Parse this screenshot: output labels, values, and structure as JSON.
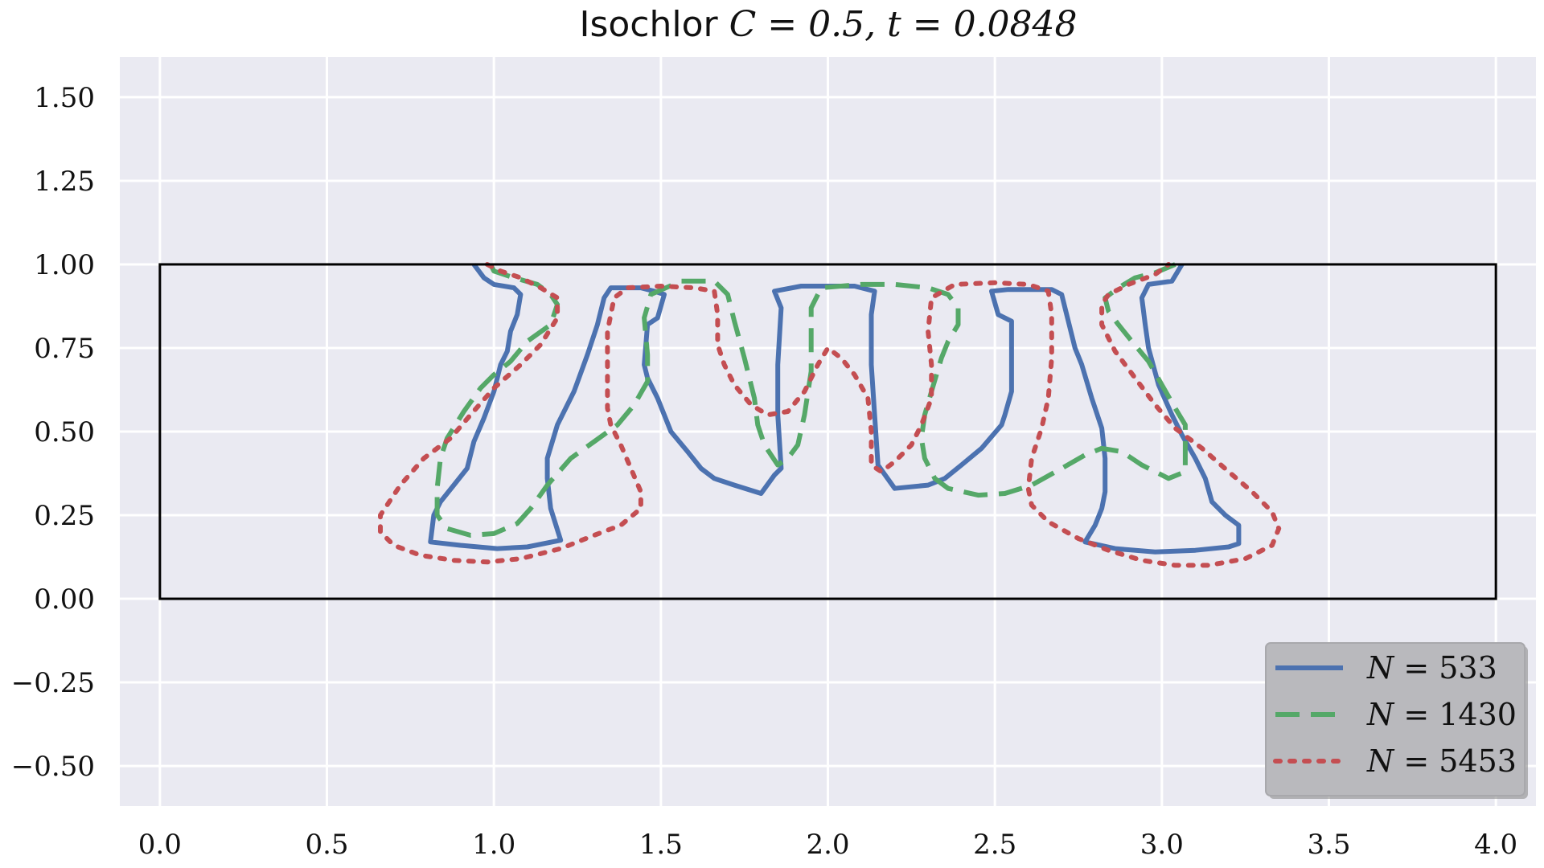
{
  "chart_data": {
    "type": "line",
    "title": "Isochlor C = 0.5, t = 0.0848",
    "title_parts": {
      "prefix": "Isochlor ",
      "c_label": "C = 0.5, ",
      "t_label": "t = 0.0848"
    },
    "xlabel": "",
    "ylabel": "",
    "xlim": [
      -0.12,
      4.12
    ],
    "ylim": [
      -0.62,
      1.62
    ],
    "x_ticks": [
      0.0,
      0.5,
      1.0,
      1.5,
      2.0,
      2.5,
      3.0,
      3.5,
      4.0
    ],
    "x_tick_labels": [
      "0.0",
      "0.5",
      "1.0",
      "1.5",
      "2.0",
      "2.5",
      "3.0",
      "3.5",
      "4.0"
    ],
    "y_ticks": [
      1.5,
      1.25,
      1.0,
      0.75,
      0.5,
      0.25,
      0.0,
      -0.25,
      -0.5
    ],
    "y_tick_labels": [
      "1.50",
      "1.25",
      "1.00",
      "0.75",
      "0.50",
      "0.25",
      "0.00",
      "−0.25",
      "−0.50"
    ],
    "grid": true,
    "background": "#eaeaf2",
    "legend_position": "bottom-right",
    "domain_box": {
      "x": [
        0,
        4
      ],
      "y": [
        0,
        1
      ],
      "color": "#000000"
    },
    "series": [
      {
        "name": "N = 533",
        "legend_var": "N",
        "legend_value": "= 533",
        "color": "#4c72b0",
        "style": "solid",
        "points": [
          [
            0.94,
            1.0
          ],
          [
            0.97,
            0.96
          ],
          [
            1.0,
            0.94
          ],
          [
            1.06,
            0.93
          ],
          [
            1.08,
            0.91
          ],
          [
            1.07,
            0.85
          ],
          [
            1.05,
            0.8
          ],
          [
            1.04,
            0.74
          ],
          [
            1.02,
            0.7
          ],
          [
            1.0,
            0.62
          ],
          [
            0.97,
            0.54
          ],
          [
            0.94,
            0.47
          ],
          [
            0.92,
            0.39
          ],
          [
            0.88,
            0.34
          ],
          [
            0.84,
            0.29
          ],
          [
            0.82,
            0.25
          ],
          [
            0.81,
            0.17
          ],
          [
            0.9,
            0.16
          ],
          [
            1.01,
            0.15
          ],
          [
            1.1,
            0.155
          ],
          [
            1.2,
            0.175
          ],
          [
            1.17,
            0.27
          ],
          [
            1.16,
            0.36
          ],
          [
            1.16,
            0.42
          ],
          [
            1.19,
            0.52
          ],
          [
            1.24,
            0.62
          ],
          [
            1.28,
            0.73
          ],
          [
            1.31,
            0.82
          ],
          [
            1.33,
            0.9
          ],
          [
            1.35,
            0.93
          ],
          [
            1.44,
            0.93
          ],
          [
            1.48,
            0.92
          ],
          [
            1.51,
            0.91
          ],
          [
            1.49,
            0.84
          ],
          [
            1.46,
            0.82
          ],
          [
            1.45,
            0.7
          ],
          [
            1.46,
            0.66
          ],
          [
            1.49,
            0.6
          ],
          [
            1.53,
            0.5
          ],
          [
            1.58,
            0.44
          ],
          [
            1.62,
            0.39
          ],
          [
            1.66,
            0.36
          ],
          [
            1.72,
            0.34
          ],
          [
            1.8,
            0.315
          ],
          [
            1.84,
            0.37
          ],
          [
            1.86,
            0.39
          ],
          [
            1.85,
            0.55
          ],
          [
            1.85,
            0.7
          ],
          [
            1.86,
            0.87
          ],
          [
            1.84,
            0.92
          ],
          [
            1.92,
            0.935
          ],
          [
            2.0,
            0.935
          ],
          [
            2.08,
            0.935
          ],
          [
            2.14,
            0.92
          ],
          [
            2.13,
            0.85
          ],
          [
            2.13,
            0.7
          ],
          [
            2.14,
            0.55
          ],
          [
            2.15,
            0.4
          ],
          [
            2.2,
            0.33
          ],
          [
            2.3,
            0.34
          ],
          [
            2.35,
            0.36
          ],
          [
            2.4,
            0.4
          ],
          [
            2.46,
            0.45
          ],
          [
            2.52,
            0.52
          ],
          [
            2.53,
            0.55
          ],
          [
            2.55,
            0.62
          ],
          [
            2.55,
            0.76
          ],
          [
            2.55,
            0.83
          ],
          [
            2.51,
            0.85
          ],
          [
            2.49,
            0.92
          ],
          [
            2.54,
            0.925
          ],
          [
            2.63,
            0.925
          ],
          [
            2.67,
            0.925
          ],
          [
            2.7,
            0.91
          ],
          [
            2.72,
            0.83
          ],
          [
            2.74,
            0.75
          ],
          [
            2.76,
            0.7
          ],
          [
            2.79,
            0.6
          ],
          [
            2.82,
            0.51
          ],
          [
            2.83,
            0.42
          ],
          [
            2.83,
            0.32
          ],
          [
            2.82,
            0.27
          ],
          [
            2.8,
            0.22
          ],
          [
            2.77,
            0.17
          ],
          [
            2.86,
            0.15
          ],
          [
            2.98,
            0.14
          ],
          [
            3.1,
            0.145
          ],
          [
            3.2,
            0.155
          ],
          [
            3.23,
            0.165
          ],
          [
            3.23,
            0.22
          ],
          [
            3.19,
            0.25
          ],
          [
            3.15,
            0.29
          ],
          [
            3.13,
            0.36
          ],
          [
            3.1,
            0.42
          ],
          [
            3.06,
            0.49
          ],
          [
            3.03,
            0.55
          ],
          [
            2.99,
            0.64
          ],
          [
            2.96,
            0.75
          ],
          [
            2.95,
            0.82
          ],
          [
            2.94,
            0.9
          ],
          [
            2.96,
            0.94
          ],
          [
            3.03,
            0.95
          ],
          [
            3.06,
            1.0
          ]
        ]
      },
      {
        "name": "N = 1430",
        "legend_var": "N",
        "legend_value": "= 1430",
        "color": "#55a868",
        "style": "dashed",
        "points": [
          [
            0.99,
            1.0
          ],
          [
            1.0,
            0.98
          ],
          [
            1.06,
            0.96
          ],
          [
            1.13,
            0.94
          ],
          [
            1.17,
            0.91
          ],
          [
            1.19,
            0.88
          ],
          [
            1.17,
            0.82
          ],
          [
            1.1,
            0.77
          ],
          [
            1.05,
            0.71
          ],
          [
            1.0,
            0.67
          ],
          [
            0.96,
            0.63
          ],
          [
            0.91,
            0.56
          ],
          [
            0.86,
            0.48
          ],
          [
            0.84,
            0.42
          ],
          [
            0.83,
            0.33
          ],
          [
            0.83,
            0.25
          ],
          [
            0.86,
            0.21
          ],
          [
            0.93,
            0.19
          ],
          [
            1.0,
            0.195
          ],
          [
            1.07,
            0.225
          ],
          [
            1.11,
            0.27
          ],
          [
            1.16,
            0.34
          ],
          [
            1.23,
            0.42
          ],
          [
            1.3,
            0.47
          ],
          [
            1.37,
            0.52
          ],
          [
            1.42,
            0.58
          ],
          [
            1.46,
            0.65
          ],
          [
            1.46,
            0.73
          ],
          [
            1.45,
            0.84
          ],
          [
            1.47,
            0.91
          ],
          [
            1.56,
            0.95
          ],
          [
            1.66,
            0.95
          ],
          [
            1.7,
            0.91
          ],
          [
            1.72,
            0.83
          ],
          [
            1.75,
            0.72
          ],
          [
            1.78,
            0.6
          ],
          [
            1.79,
            0.52
          ],
          [
            1.81,
            0.46
          ],
          [
            1.83,
            0.43
          ],
          [
            1.85,
            0.4
          ],
          [
            1.88,
            0.42
          ],
          [
            1.91,
            0.46
          ],
          [
            1.93,
            0.55
          ],
          [
            1.95,
            0.68
          ],
          [
            1.95,
            0.8
          ],
          [
            1.95,
            0.87
          ],
          [
            1.98,
            0.93
          ],
          [
            2.1,
            0.94
          ],
          [
            2.2,
            0.94
          ],
          [
            2.3,
            0.93
          ],
          [
            2.36,
            0.91
          ],
          [
            2.39,
            0.87
          ],
          [
            2.39,
            0.82
          ],
          [
            2.36,
            0.77
          ],
          [
            2.34,
            0.72
          ],
          [
            2.31,
            0.62
          ],
          [
            2.29,
            0.55
          ],
          [
            2.28,
            0.48
          ],
          [
            2.29,
            0.42
          ],
          [
            2.32,
            0.36
          ],
          [
            2.36,
            0.33
          ],
          [
            2.45,
            0.31
          ],
          [
            2.53,
            0.315
          ],
          [
            2.61,
            0.34
          ],
          [
            2.7,
            0.39
          ],
          [
            2.77,
            0.43
          ],
          [
            2.82,
            0.45
          ],
          [
            2.88,
            0.44
          ],
          [
            2.94,
            0.4
          ],
          [
            3.0,
            0.37
          ],
          [
            3.02,
            0.36
          ],
          [
            3.07,
            0.38
          ],
          [
            3.07,
            0.44
          ],
          [
            3.07,
            0.52
          ],
          [
            3.04,
            0.57
          ],
          [
            3.0,
            0.64
          ],
          [
            2.96,
            0.71
          ],
          [
            2.91,
            0.77
          ],
          [
            2.87,
            0.82
          ],
          [
            2.84,
            0.86
          ],
          [
            2.83,
            0.9
          ],
          [
            2.87,
            0.93
          ],
          [
            2.92,
            0.96
          ],
          [
            2.98,
            0.975
          ],
          [
            3.04,
            1.0
          ]
        ]
      },
      {
        "name": "N = 5453",
        "legend_var": "N",
        "legend_value": "= 5453",
        "color": "#c44e52",
        "style": "dotted",
        "points": [
          [
            0.98,
            1.0
          ],
          [
            1.02,
            0.98
          ],
          [
            1.08,
            0.96
          ],
          [
            1.14,
            0.93
          ],
          [
            1.19,
            0.9
          ],
          [
            1.19,
            0.84
          ],
          [
            1.14,
            0.76
          ],
          [
            1.08,
            0.7
          ],
          [
            1.0,
            0.63
          ],
          [
            0.93,
            0.55
          ],
          [
            0.87,
            0.48
          ],
          [
            0.79,
            0.42
          ],
          [
            0.72,
            0.34
          ],
          [
            0.66,
            0.25
          ],
          [
            0.66,
            0.2
          ],
          [
            0.7,
            0.16
          ],
          [
            0.78,
            0.13
          ],
          [
            0.88,
            0.115
          ],
          [
            0.98,
            0.11
          ],
          [
            1.08,
            0.12
          ],
          [
            1.2,
            0.15
          ],
          [
            1.3,
            0.19
          ],
          [
            1.38,
            0.22
          ],
          [
            1.44,
            0.27
          ],
          [
            1.44,
            0.32
          ],
          [
            1.41,
            0.39
          ],
          [
            1.38,
            0.46
          ],
          [
            1.35,
            0.52
          ],
          [
            1.34,
            0.57
          ],
          [
            1.34,
            0.66
          ],
          [
            1.34,
            0.8
          ],
          [
            1.36,
            0.9
          ],
          [
            1.4,
            0.93
          ],
          [
            1.5,
            0.935
          ],
          [
            1.6,
            0.93
          ],
          [
            1.66,
            0.92
          ],
          [
            1.67,
            0.85
          ],
          [
            1.67,
            0.76
          ],
          [
            1.69,
            0.7
          ],
          [
            1.72,
            0.64
          ],
          [
            1.77,
            0.58
          ],
          [
            1.82,
            0.55
          ],
          [
            1.88,
            0.56
          ],
          [
            1.93,
            0.62
          ],
          [
            1.97,
            0.7
          ],
          [
            2.0,
            0.75
          ],
          [
            2.04,
            0.72
          ],
          [
            2.08,
            0.67
          ],
          [
            2.12,
            0.6
          ],
          [
            2.13,
            0.5
          ],
          [
            2.13,
            0.4
          ],
          [
            2.16,
            0.38
          ],
          [
            2.2,
            0.41
          ],
          [
            2.25,
            0.46
          ],
          [
            2.28,
            0.52
          ],
          [
            2.31,
            0.6
          ],
          [
            2.31,
            0.7
          ],
          [
            2.3,
            0.8
          ],
          [
            2.31,
            0.9
          ],
          [
            2.38,
            0.94
          ],
          [
            2.5,
            0.945
          ],
          [
            2.6,
            0.94
          ],
          [
            2.66,
            0.92
          ],
          [
            2.67,
            0.85
          ],
          [
            2.67,
            0.72
          ],
          [
            2.66,
            0.6
          ],
          [
            2.64,
            0.51
          ],
          [
            2.61,
            0.42
          ],
          [
            2.6,
            0.33
          ],
          [
            2.61,
            0.28
          ],
          [
            2.66,
            0.23
          ],
          [
            2.75,
            0.18
          ],
          [
            2.84,
            0.145
          ],
          [
            2.94,
            0.115
          ],
          [
            3.04,
            0.1
          ],
          [
            3.14,
            0.1
          ],
          [
            3.25,
            0.12
          ],
          [
            3.33,
            0.16
          ],
          [
            3.35,
            0.21
          ],
          [
            3.33,
            0.26
          ],
          [
            3.27,
            0.32
          ],
          [
            3.2,
            0.38
          ],
          [
            3.12,
            0.45
          ],
          [
            3.04,
            0.51
          ],
          [
            2.98,
            0.58
          ],
          [
            2.92,
            0.66
          ],
          [
            2.86,
            0.74
          ],
          [
            2.82,
            0.82
          ],
          [
            2.82,
            0.88
          ],
          [
            2.84,
            0.91
          ],
          [
            2.9,
            0.94
          ],
          [
            2.98,
            0.97
          ],
          [
            3.02,
            1.0
          ]
        ]
      }
    ]
  }
}
